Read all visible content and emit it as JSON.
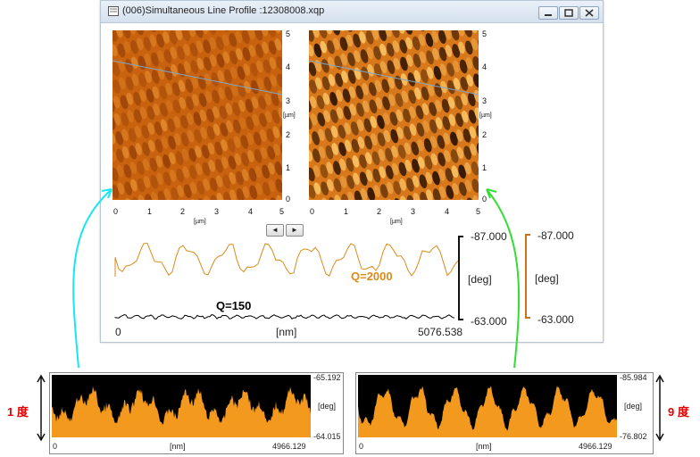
{
  "window": {
    "title": "(006)Simultaneous Line Profile :12308008.xqp"
  },
  "left_image": {
    "x_ticks": [
      "0",
      "1",
      "2",
      "3",
      "4",
      "5"
    ],
    "y_ticks": [
      "0",
      "1",
      "2",
      "3",
      "4",
      "5"
    ],
    "x_unit": "[µm]",
    "y_unit": "[µm]",
    "colors": {
      "base": "#c8620e",
      "light": "#f0a040",
      "dark": "#7a2e05"
    }
  },
  "right_image": {
    "x_ticks": [
      "0",
      "1",
      "2",
      "3",
      "4",
      "5"
    ],
    "y_ticks": [
      "0",
      "1",
      "2",
      "3",
      "4",
      "5"
    ],
    "x_unit": "[µm]",
    "y_unit": "[µm]",
    "colors": {
      "base": "#d8781a",
      "light": "#ffd070",
      "dark": "#1a0800"
    }
  },
  "nav": {
    "prev": "◄",
    "next": "►"
  },
  "profile_panel": {
    "x_start": "0",
    "x_unit": "[nm]",
    "x_end": "5076.538",
    "y_top": "-87.000",
    "y_bottom": "-63.000",
    "y_unit": "[deg]",
    "y2_top": "-87.000",
    "y2_bottom": "-63.000",
    "y2_unit": "[deg]",
    "q_low_label": "Q=150",
    "q_high_label": "Q=2000",
    "q_high_color": "#d98b1c",
    "q_low_color": "#000000"
  },
  "bottom_left": {
    "y_top": "-65.192",
    "y_unit": "[deg]",
    "y_bottom": "-64.015",
    "x_start": "0",
    "x_unit": "[nm]",
    "x_end": "4966.129",
    "side_label": "1 度",
    "fill_color": "#f39a1e"
  },
  "bottom_right": {
    "y_top": "-85.984",
    "y_unit": "[deg]",
    "y_bottom": "-76.802",
    "x_start": "0",
    "x_unit": "[nm]",
    "x_end": "4966.129",
    "side_label": "9 度",
    "fill_color": "#f39a1e"
  },
  "arrows": {
    "left_color": "#18e6f0",
    "right_color": "#33dd33"
  },
  "label_color": "#e00000"
}
